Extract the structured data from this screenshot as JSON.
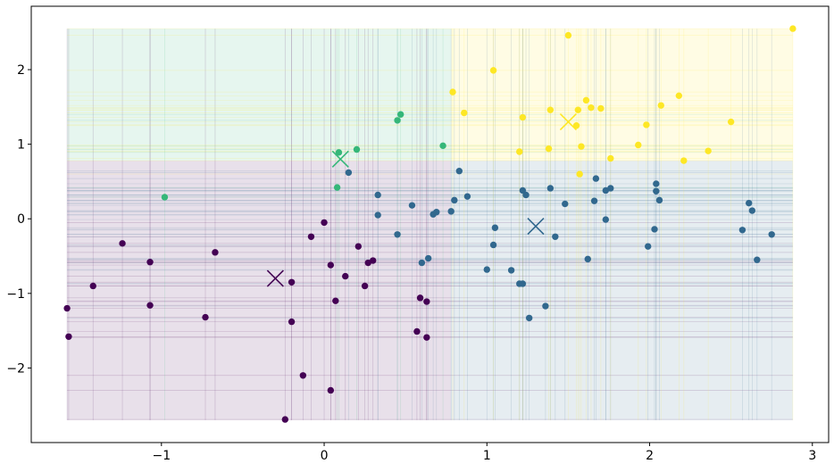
{
  "chart_data": {
    "type": "scatter",
    "title": "",
    "xlabel": "",
    "ylabel": "",
    "xlim": [
      -1.8,
      3.1
    ],
    "ylim": [
      -3.0,
      2.85
    ],
    "grid": false,
    "legend": "none",
    "x_ticks": [
      {
        "value": -1,
        "label": "−1"
      },
      {
        "value": 0,
        "label": "0"
      },
      {
        "value": 1,
        "label": "1"
      },
      {
        "value": 2,
        "label": "2"
      },
      {
        "value": 3,
        "label": "3"
      }
    ],
    "y_ticks": [
      {
        "value": -2,
        "label": "−2"
      },
      {
        "value": -1,
        "label": "−1"
      },
      {
        "value": 0,
        "label": "0"
      },
      {
        "value": 1,
        "label": "1"
      },
      {
        "value": 2,
        "label": "2"
      }
    ],
    "colors": {
      "cluster_0": "#440154",
      "cluster_1": "#31688e",
      "cluster_2": "#35b779",
      "cluster_3": "#fde725"
    },
    "regions": [
      {
        "cluster": 2,
        "x0": -1.58,
        "x1": 0.78,
        "y0": 0.78,
        "y1": 2.55
      },
      {
        "cluster": 3,
        "x0": 0.78,
        "x1": 2.88,
        "y0": 0.78,
        "y1": 2.55
      },
      {
        "cluster": 0,
        "x0": -1.58,
        "x1": 0.78,
        "y0": -2.7,
        "y1": 0.78
      },
      {
        "cluster": 1,
        "x0": 0.78,
        "x1": 2.88,
        "y0": -2.7,
        "y1": 0.78
      }
    ],
    "centroids": [
      {
        "cluster": 0,
        "x": -0.3,
        "y": -0.8
      },
      {
        "cluster": 1,
        "x": 1.3,
        "y": -0.1
      },
      {
        "cluster": 2,
        "x": 0.1,
        "y": 0.8
      },
      {
        "cluster": 3,
        "x": 1.5,
        "y": 1.3
      }
    ],
    "series": [
      {
        "cluster": 0,
        "points": [
          [
            -1.58,
            -1.2
          ],
          [
            -1.57,
            -1.58
          ],
          [
            -1.42,
            -0.9
          ],
          [
            -1.24,
            -0.33
          ],
          [
            -1.07,
            -0.58
          ],
          [
            -1.07,
            -1.16
          ],
          [
            -0.73,
            -1.32
          ],
          [
            -0.67,
            -0.45
          ],
          [
            -0.24,
            -2.69
          ],
          [
            -0.2,
            -0.85
          ],
          [
            -0.2,
            -1.38
          ],
          [
            -0.13,
            -2.1
          ],
          [
            -0.08,
            -0.24
          ],
          [
            0.0,
            -0.05
          ],
          [
            0.04,
            -2.3
          ],
          [
            0.04,
            -0.62
          ],
          [
            0.07,
            -1.1
          ],
          [
            0.13,
            -0.77
          ],
          [
            0.21,
            -0.37
          ],
          [
            0.25,
            -0.9
          ],
          [
            0.27,
            -0.59
          ],
          [
            0.3,
            -0.56
          ],
          [
            0.57,
            -1.51
          ],
          [
            0.59,
            -1.06
          ],
          [
            0.63,
            -1.11
          ],
          [
            0.63,
            -1.59
          ]
        ]
      },
      {
        "cluster": 1,
        "points": [
          [
            0.15,
            0.62
          ],
          [
            0.33,
            0.32
          ],
          [
            0.33,
            0.05
          ],
          [
            0.45,
            -0.21
          ],
          [
            0.54,
            0.18
          ],
          [
            0.6,
            -0.59
          ],
          [
            0.64,
            -0.53
          ],
          [
            0.67,
            0.06
          ],
          [
            0.69,
            0.09
          ],
          [
            0.78,
            0.1
          ],
          [
            0.8,
            0.25
          ],
          [
            0.83,
            0.64
          ],
          [
            0.88,
            0.3
          ],
          [
            1.0,
            -0.68
          ],
          [
            1.04,
            -0.35
          ],
          [
            1.05,
            -0.12
          ],
          [
            1.15,
            -0.69
          ],
          [
            1.2,
            -0.87
          ],
          [
            1.22,
            0.38
          ],
          [
            1.22,
            -0.87
          ],
          [
            1.24,
            0.32
          ],
          [
            1.26,
            -1.33
          ],
          [
            1.36,
            -1.17
          ],
          [
            1.39,
            0.41
          ],
          [
            1.42,
            -0.24
          ],
          [
            1.48,
            0.2
          ],
          [
            1.62,
            -0.54
          ],
          [
            1.66,
            0.24
          ],
          [
            1.67,
            0.54
          ],
          [
            1.73,
            0.38
          ],
          [
            1.73,
            -0.01
          ],
          [
            1.76,
            0.41
          ],
          [
            1.99,
            -0.37
          ],
          [
            2.03,
            -0.14
          ],
          [
            2.04,
            0.37
          ],
          [
            2.04,
            0.47
          ],
          [
            2.06,
            0.25
          ],
          [
            2.57,
            -0.15
          ],
          [
            2.61,
            0.21
          ],
          [
            2.63,
            0.11
          ],
          [
            2.66,
            -0.55
          ],
          [
            2.75,
            -0.21
          ]
        ]
      },
      {
        "cluster": 2,
        "points": [
          [
            -0.98,
            0.29
          ],
          [
            0.08,
            0.42
          ],
          [
            0.09,
            0.89
          ],
          [
            0.2,
            0.93
          ],
          [
            0.45,
            1.32
          ],
          [
            0.47,
            1.4
          ],
          [
            0.73,
            0.98
          ]
        ]
      },
      {
        "cluster": 3,
        "points": [
          [
            0.79,
            1.7
          ],
          [
            0.86,
            1.42
          ],
          [
            1.04,
            1.99
          ],
          [
            1.2,
            0.9
          ],
          [
            1.22,
            1.36
          ],
          [
            1.38,
            0.94
          ],
          [
            1.39,
            1.46
          ],
          [
            1.5,
            2.46
          ],
          [
            1.55,
            1.25
          ],
          [
            1.56,
            1.46
          ],
          [
            1.57,
            0.6
          ],
          [
            1.58,
            0.97
          ],
          [
            1.61,
            1.59
          ],
          [
            1.64,
            1.49
          ],
          [
            1.7,
            1.48
          ],
          [
            1.76,
            0.81
          ],
          [
            1.93,
            0.99
          ],
          [
            1.98,
            1.26
          ],
          [
            2.07,
            1.52
          ],
          [
            2.18,
            1.65
          ],
          [
            2.21,
            0.78
          ],
          [
            2.36,
            0.91
          ],
          [
            2.5,
            1.3
          ],
          [
            2.88,
            2.55
          ]
        ]
      }
    ]
  }
}
